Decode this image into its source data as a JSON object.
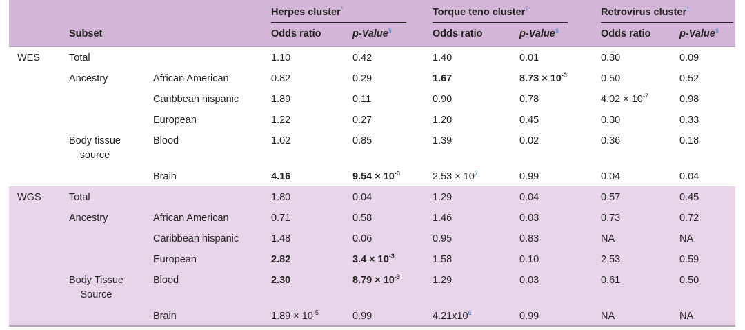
{
  "header": {
    "herpes": "Herpes cluster",
    "herpes_mark": "*",
    "torque": "Torque teno cluster",
    "torque_mark": "†",
    "retro": "Retrovirus cluster",
    "retro_mark": "‡",
    "subset": "Subset",
    "or1": "Odds ratio",
    "pv1": "p-Value",
    "pv_mark": "§",
    "or2": "Odds ratio",
    "pv2": "p-Value",
    "or3": "Odds ratio",
    "pv3": "p-Value"
  },
  "wes": {
    "label": "WES",
    "total": {
      "subset": "Total",
      "cells": [
        "1.10",
        "0.42",
        "1.40",
        "0.01",
        "0.30",
        "0.09"
      ]
    },
    "ancestry": "Ancestry",
    "aa": {
      "name": "African American",
      "c1": "0.82",
      "c2": "0.29",
      "c3": "1.67",
      "c4_base": "8.73 × 10",
      "c4_exp": "-3",
      "c5": "0.50",
      "c6": "0.52"
    },
    "ch": {
      "name": "Caribbean hispanic",
      "c1": "1.89",
      "c2": "0.11",
      "c3": "0.90",
      "c4": "0.78",
      "c5_base": "4.02 × 10",
      "c5_exp": "-7",
      "c6": "0.98"
    },
    "eu": {
      "name": "European",
      "cells": [
        "1.22",
        "0.27",
        "1.20",
        "0.45",
        "0.30",
        "0.33"
      ]
    },
    "body_l1": "Body tissue",
    "body_l2": "source",
    "blood": {
      "name": "Blood",
      "cells": [
        "1.02",
        "0.85",
        "1.39",
        "0.02",
        "0.36",
        "0.18"
      ]
    },
    "brain": {
      "name": "Brain",
      "c1": "4.16",
      "c2_base": "9.54 × 10",
      "c2_exp": "-3",
      "c3_base": "2.53 × 10",
      "c3_exp": "7",
      "c4": "0.99",
      "c5": "0.04",
      "c6": "0.04"
    }
  },
  "wgs": {
    "label": "WGS",
    "total": {
      "subset": "Total",
      "cells": [
        "1.80",
        "0.04",
        "1.29",
        "0.04",
        "0.57",
        "0.45"
      ]
    },
    "ancestry": "Ancestry",
    "aa": {
      "name": "African American",
      "cells": [
        "0.71",
        "0.58",
        "1.46",
        "0.03",
        "0.73",
        "0.72"
      ]
    },
    "ch": {
      "name": "Caribbean hispanic",
      "cells": [
        "1.48",
        "0.06",
        "0.95",
        "0.83",
        "NA",
        "NA"
      ]
    },
    "eu": {
      "name": "European",
      "c1": "2.82",
      "c2_base": "3.4 × 10",
      "c2_exp": "-3",
      "c3": "1.58",
      "c4": "0.10",
      "c5": "2.53",
      "c6": "0.59"
    },
    "body_l1": "Body Tissue",
    "body_l2": "Source",
    "blood": {
      "name": "Blood",
      "c1": "2.30",
      "c2_base": "8.79 × 10",
      "c2_exp": "-3",
      "c3": "1.29",
      "c4": "0.03",
      "c5": "0.61",
      "c6": "0.50"
    },
    "brain": {
      "name": "Brain",
      "c1_base": "1.89 × 10",
      "c1_exp": "-5",
      "c2": "0.99",
      "c3_base": "4.21x10",
      "c3_exp": "6",
      "c4": "0.99",
      "c5": "NA",
      "c6": "NA"
    }
  }
}
